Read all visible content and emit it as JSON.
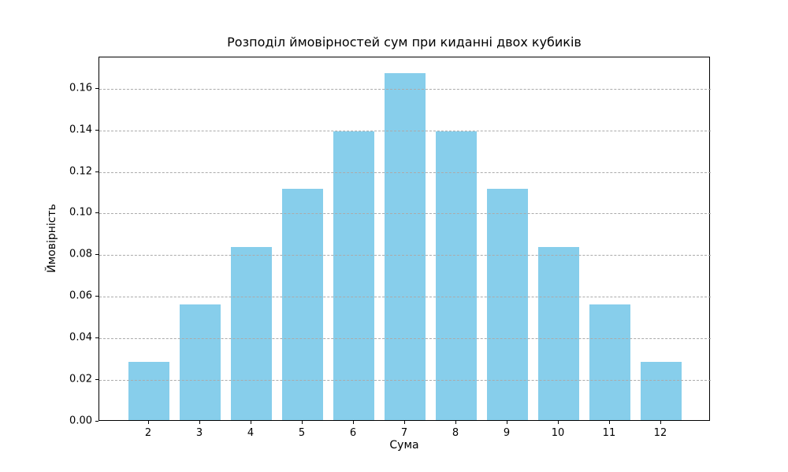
{
  "chart_data": {
    "type": "bar",
    "title": "Розподіл ймовірностей сум при киданні двох кубиків",
    "xlabel": "Сума",
    "ylabel": "Ймовірність",
    "categories": [
      2,
      3,
      4,
      5,
      6,
      7,
      8,
      9,
      10,
      11,
      12
    ],
    "values": [
      0.0278,
      0.0556,
      0.0833,
      0.1111,
      0.1389,
      0.1667,
      0.1389,
      0.1111,
      0.0833,
      0.0556,
      0.0278
    ],
    "y_ticks": [
      0.0,
      0.02,
      0.04,
      0.06,
      0.08,
      0.1,
      0.12,
      0.14,
      0.16
    ],
    "y_tick_labels": [
      "0.00",
      "0.02",
      "0.04",
      "0.06",
      "0.08",
      "0.10",
      "0.12",
      "0.14",
      "0.16"
    ],
    "x_tick_labels": [
      "2",
      "3",
      "4",
      "5",
      "6",
      "7",
      "8",
      "9",
      "10",
      "11",
      "12"
    ],
    "ylim": [
      0,
      0.175
    ],
    "xlim": [
      1.03,
      12.97
    ],
    "bar_width_units": 0.8,
    "bar_color": "#87CEEB",
    "grid": true,
    "grid_style": "dashed",
    "grid_color": "#ababab",
    "grid_above_bars": true,
    "legend": "none",
    "background_color": "#ffffff",
    "spine_color": "#000000"
  }
}
